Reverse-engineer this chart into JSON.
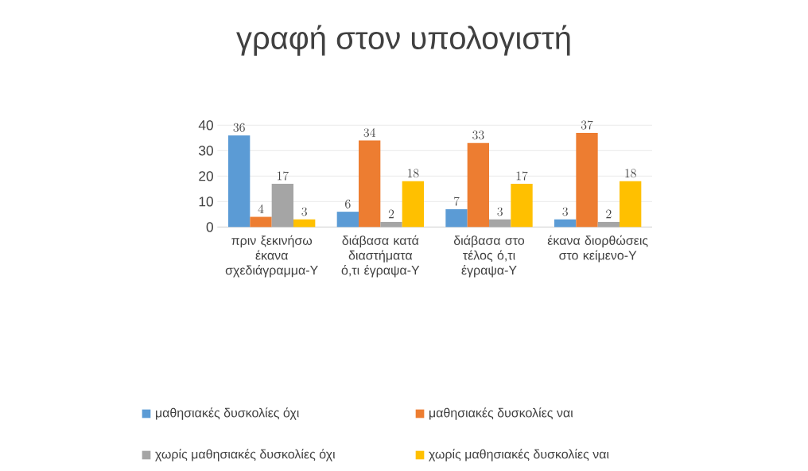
{
  "chart_data": {
    "type": "bar",
    "title": "γραφή στον υπολογιστή",
    "categories": [
      "πριν ξεκινήσω έκανα σχεδιάγραμμα-Υ",
      "διάβασα κατά διαστήματα ό,τι έγραψα-Υ",
      "διάβασα στο τέλος ό,τι έγραψα-Υ",
      "έκανα διορθώσεις στο κείμενο-Υ"
    ],
    "series": [
      {
        "name": "μαθησιακές δυσκολίες όχι",
        "color": "#5b9bd5",
        "values": [
          36,
          6,
          7,
          3
        ]
      },
      {
        "name": "μαθησιακές δυσκολίες ναι",
        "color": "#ed7d31",
        "values": [
          4,
          34,
          33,
          37
        ]
      },
      {
        "name": "χωρίς μαθησιακές δυσκολίες όχι",
        "color": "#a5a5a5",
        "values": [
          17,
          2,
          3,
          2
        ]
      },
      {
        "name": "χωρίς μαθησιακές δυσκολίες ναι",
        "color": "#ffc000",
        "values": [
          3,
          18,
          17,
          18
        ]
      }
    ],
    "ylim": [
      0,
      40
    ],
    "yticks": [
      0,
      10,
      20,
      30,
      40
    ],
    "grid": "y",
    "legend": "bottom",
    "data_labels": true
  }
}
